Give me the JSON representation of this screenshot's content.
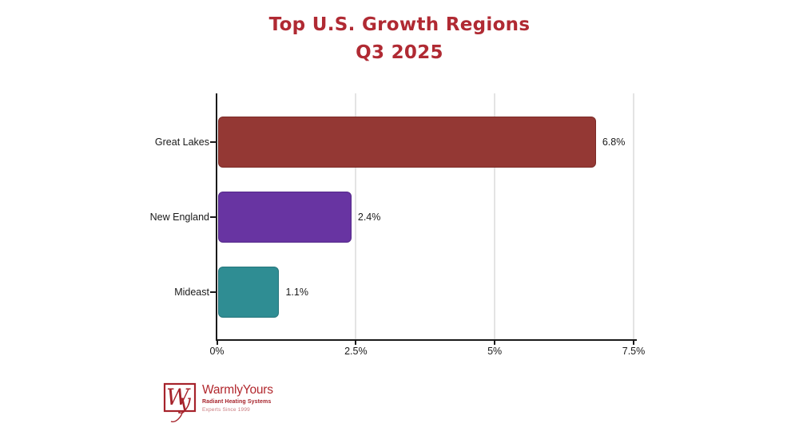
{
  "title": {
    "line1": "Top U.S. Growth Regions",
    "line2": "Q3 2025",
    "color": "#B02A33"
  },
  "chart_data": {
    "type": "bar",
    "orientation": "horizontal",
    "title": "Top U.S. Growth Regions Q3 2025",
    "categories": [
      "Great Lakes",
      "New England",
      "Mideast"
    ],
    "values": [
      6.8,
      2.4,
      1.1
    ],
    "value_labels": [
      "6.8%",
      "2.4%",
      "1.1%"
    ],
    "bar_colors": [
      "#943834",
      "#6834A2",
      "#2F8D93"
    ],
    "bar_border_colors": [
      "#7C2B27",
      "#54288A",
      "#26757B"
    ],
    "xlim": [
      0,
      7.5
    ],
    "x_ticks": [
      {
        "value": 0,
        "label": "0%"
      },
      {
        "value": 2.5,
        "label": "2.5%"
      },
      {
        "value": 5,
        "label": "5%"
      },
      {
        "value": 7.5,
        "label": "7.5%"
      }
    ],
    "grid": "vertical-only",
    "gridline_color": "#e4e4e4",
    "axis_color": "#1a1a1a",
    "legend": "none"
  },
  "logo": {
    "monogram_w": "W",
    "monogram_y": "y",
    "name": "WarmlyYours",
    "tagline": "Radiant Heating Systems",
    "subtagline": "Experts Since 1999",
    "name_color": "#B2282E",
    "tagline_color": "#A6232B",
    "subtagline_color": "#C9797D"
  }
}
